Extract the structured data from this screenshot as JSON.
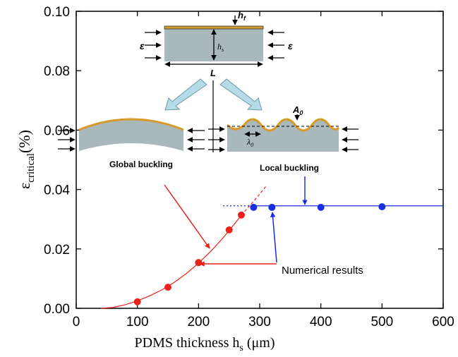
{
  "chart_data": {
    "type": "scatter",
    "x_label": {
      "text": "PDMS thickness h",
      "sub": "s",
      "unit": "(μm)"
    },
    "y_label": {
      "text": "ε",
      "sub": "critical",
      "unit": "(%)"
    },
    "xlim": [
      0,
      600
    ],
    "xticks": [
      0,
      100,
      200,
      300,
      400,
      500,
      600
    ],
    "ylim": [
      0,
      0.1
    ],
    "yticks": [
      {
        "value": 0,
        "label": "0.00"
      },
      {
        "value": 0.02,
        "label": "0.02"
      },
      {
        "value": 0.04,
        "label": "0.04"
      },
      {
        "value": 0.06,
        "label": "0.06"
      },
      {
        "value": 0.08,
        "label": "0.08"
      },
      {
        "value": 0.1,
        "label": "0.10"
      }
    ],
    "series": [
      {
        "mode": "markers",
        "color": "#e8231c",
        "x": [
          100,
          150,
          200,
          250,
          270
        ],
        "values": [
          0.0022,
          0.0071,
          0.0154,
          0.0264,
          0.0314
        ]
      },
      {
        "mode": "markers",
        "color": "#1a2ee6",
        "x": [
          290,
          320,
          400,
          500
        ],
        "values": [
          0.034,
          0.034,
          0.034,
          0.0342
        ]
      },
      {
        "mode": "line",
        "dash": "solid",
        "color": "#e8231c",
        "x": [
          40,
          60,
          80,
          100,
          120,
          140,
          160,
          180,
          200,
          220,
          240,
          260,
          270
        ],
        "values": [
          0,
          0.0003,
          0.0012,
          0.0025,
          0.0042,
          0.0062,
          0.0087,
          0.0117,
          0.0152,
          0.0192,
          0.0237,
          0.0287,
          0.0314
        ]
      },
      {
        "mode": "line",
        "dash": "dashed",
        "color": "#e8231c",
        "x": [
          270,
          290,
          310
        ],
        "values": [
          0.0314,
          0.036,
          0.041
        ]
      },
      {
        "mode": "line",
        "dash": "solid",
        "color": "#1a2ee6",
        "x": [
          290,
          600
        ],
        "values": [
          0.0345,
          0.0345
        ]
      },
      {
        "mode": "line",
        "dash": "dotted",
        "color": "#1a2ee6",
        "x": [
          240,
          290
        ],
        "values": [
          0.0345,
          0.0345
        ]
      }
    ],
    "annotations": [
      "Numerical results",
      "Global buckling",
      "Local buckling"
    ]
  },
  "inset": {
    "film_thickness": {
      "text": "h",
      "sub": "f"
    },
    "substrate_thickness": {
      "text": "h",
      "sub": "s"
    },
    "strain": "ε",
    "length": "L",
    "amplitude": {
      "text": "A",
      "sub": "0"
    },
    "wavelength": {
      "text": "λ",
      "sub": "0"
    }
  }
}
